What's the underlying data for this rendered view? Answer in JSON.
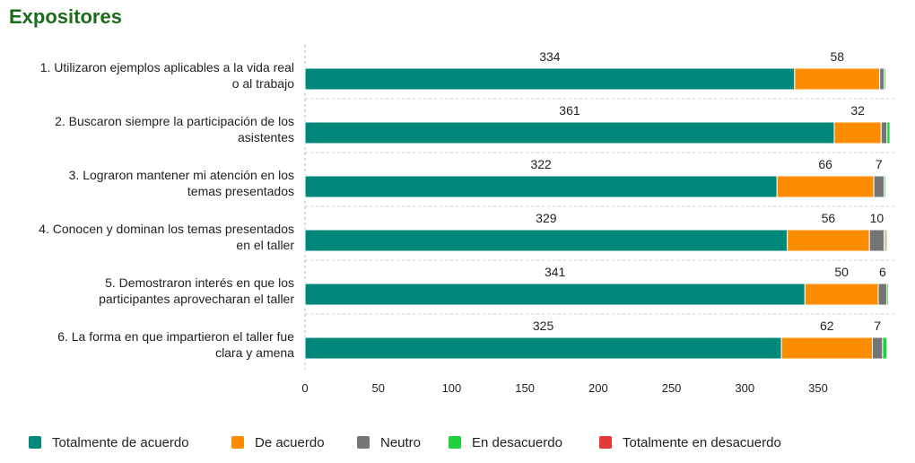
{
  "title": "Expositores",
  "chart_data": {
    "type": "bar",
    "orientation": "horizontal",
    "stacked": true,
    "title": "Expositores",
    "categories": [
      [
        "1. Utilizaron ejemplos aplicables a la vida real",
        "o al trabajo"
      ],
      [
        "2. Buscaron siempre la participación de los",
        "asistentes"
      ],
      [
        "3. Lograron mantener mi atención en los",
        "temas presentados"
      ],
      [
        "4. Conocen y dominan los temas presentados",
        "en el taller"
      ],
      [
        "5. Demostraron interés en que los",
        "participantes aprovecharan el taller"
      ],
      [
        "6. La forma en que impartieron el taller fue",
        "clara y amena"
      ]
    ],
    "series": [
      {
        "name": "Totalmente de acuerdo",
        "color": "#00897B",
        "values": [
          334,
          361,
          322,
          329,
          341,
          325
        ],
        "labels": [
          "334",
          "361",
          "322",
          "329",
          "341",
          "325"
        ]
      },
      {
        "name": "De acuerdo",
        "color": "#FB8C00",
        "values": [
          58,
          32,
          66,
          56,
          50,
          62
        ],
        "labels": [
          "58",
          "32",
          "66",
          "56",
          "50",
          "62"
        ]
      },
      {
        "name": "Neutro",
        "color": "#757575",
        "values": [
          3,
          4,
          7,
          10,
          6,
          7
        ],
        "labels": [
          "",
          "",
          "7",
          "10",
          "6",
          "7"
        ]
      },
      {
        "name": "En desacuerdo",
        "color": "#1ED03E",
        "values": [
          1,
          2,
          1,
          1,
          1,
          3
        ],
        "labels": [
          "",
          "",
          "",
          "",
          "",
          ""
        ]
      },
      {
        "name": "Totalmente en desacuerdo",
        "color": "#E53935",
        "values": [
          0,
          0,
          0,
          1,
          0,
          0
        ],
        "labels": [
          "",
          "",
          "",
          "",
          "",
          ""
        ]
      }
    ],
    "xticks": [
      0,
      50,
      100,
      150,
      200,
      250,
      300,
      350
    ],
    "xlim": [
      0,
      400
    ],
    "grid": false,
    "legend": "bottom"
  }
}
